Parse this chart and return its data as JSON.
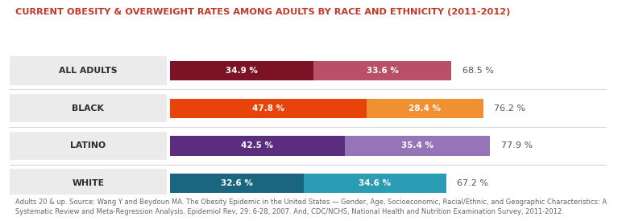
{
  "title": "CURRENT OBESITY & OVERWEIGHT RATES AMONG ADULTS BY RACE AND ETHNICITY (2011-2012)",
  "title_color": "#c0392b",
  "title_fontsize": 8.2,
  "categories": [
    "ALL ADULTS",
    "BLACK",
    "LATINO",
    "WHITE"
  ],
  "obesity_values": [
    34.9,
    47.8,
    42.5,
    32.6
  ],
  "overweight_values": [
    33.6,
    28.4,
    35.4,
    34.6
  ],
  "total_values": [
    68.5,
    76.2,
    77.9,
    67.2
  ],
  "obesity_colors": [
    "#7b1225",
    "#e8430a",
    "#5b2d7e",
    "#1a6680"
  ],
  "overweight_colors": [
    "#b85068",
    "#f09030",
    "#9575b8",
    "#2a9db5"
  ],
  "footnote": "Adults 20 & up. Source: Wang Y and Beydoun MA. The Obesity Epidemic in the United States — Gender, Age, Socioeconomic, Racial/Ethnic, and Geographic Characteristics: A\nSystematic Review and Meta-Regression Analysis. Epidemiol Rev, 29: 6-28, 2007. And, CDC/NCHS, National Health and Nutrition Examination Survey, 2011-2012.",
  "footnote_fontsize": 6.0,
  "bar_height": 0.52,
  "label_fontsize": 7.5,
  "category_fontsize": 7.8,
  "total_fontsize": 8.0,
  "bg_color": "#ffffff",
  "cat_bg_color": "#ebebeb",
  "separator_color": "#cccccc"
}
